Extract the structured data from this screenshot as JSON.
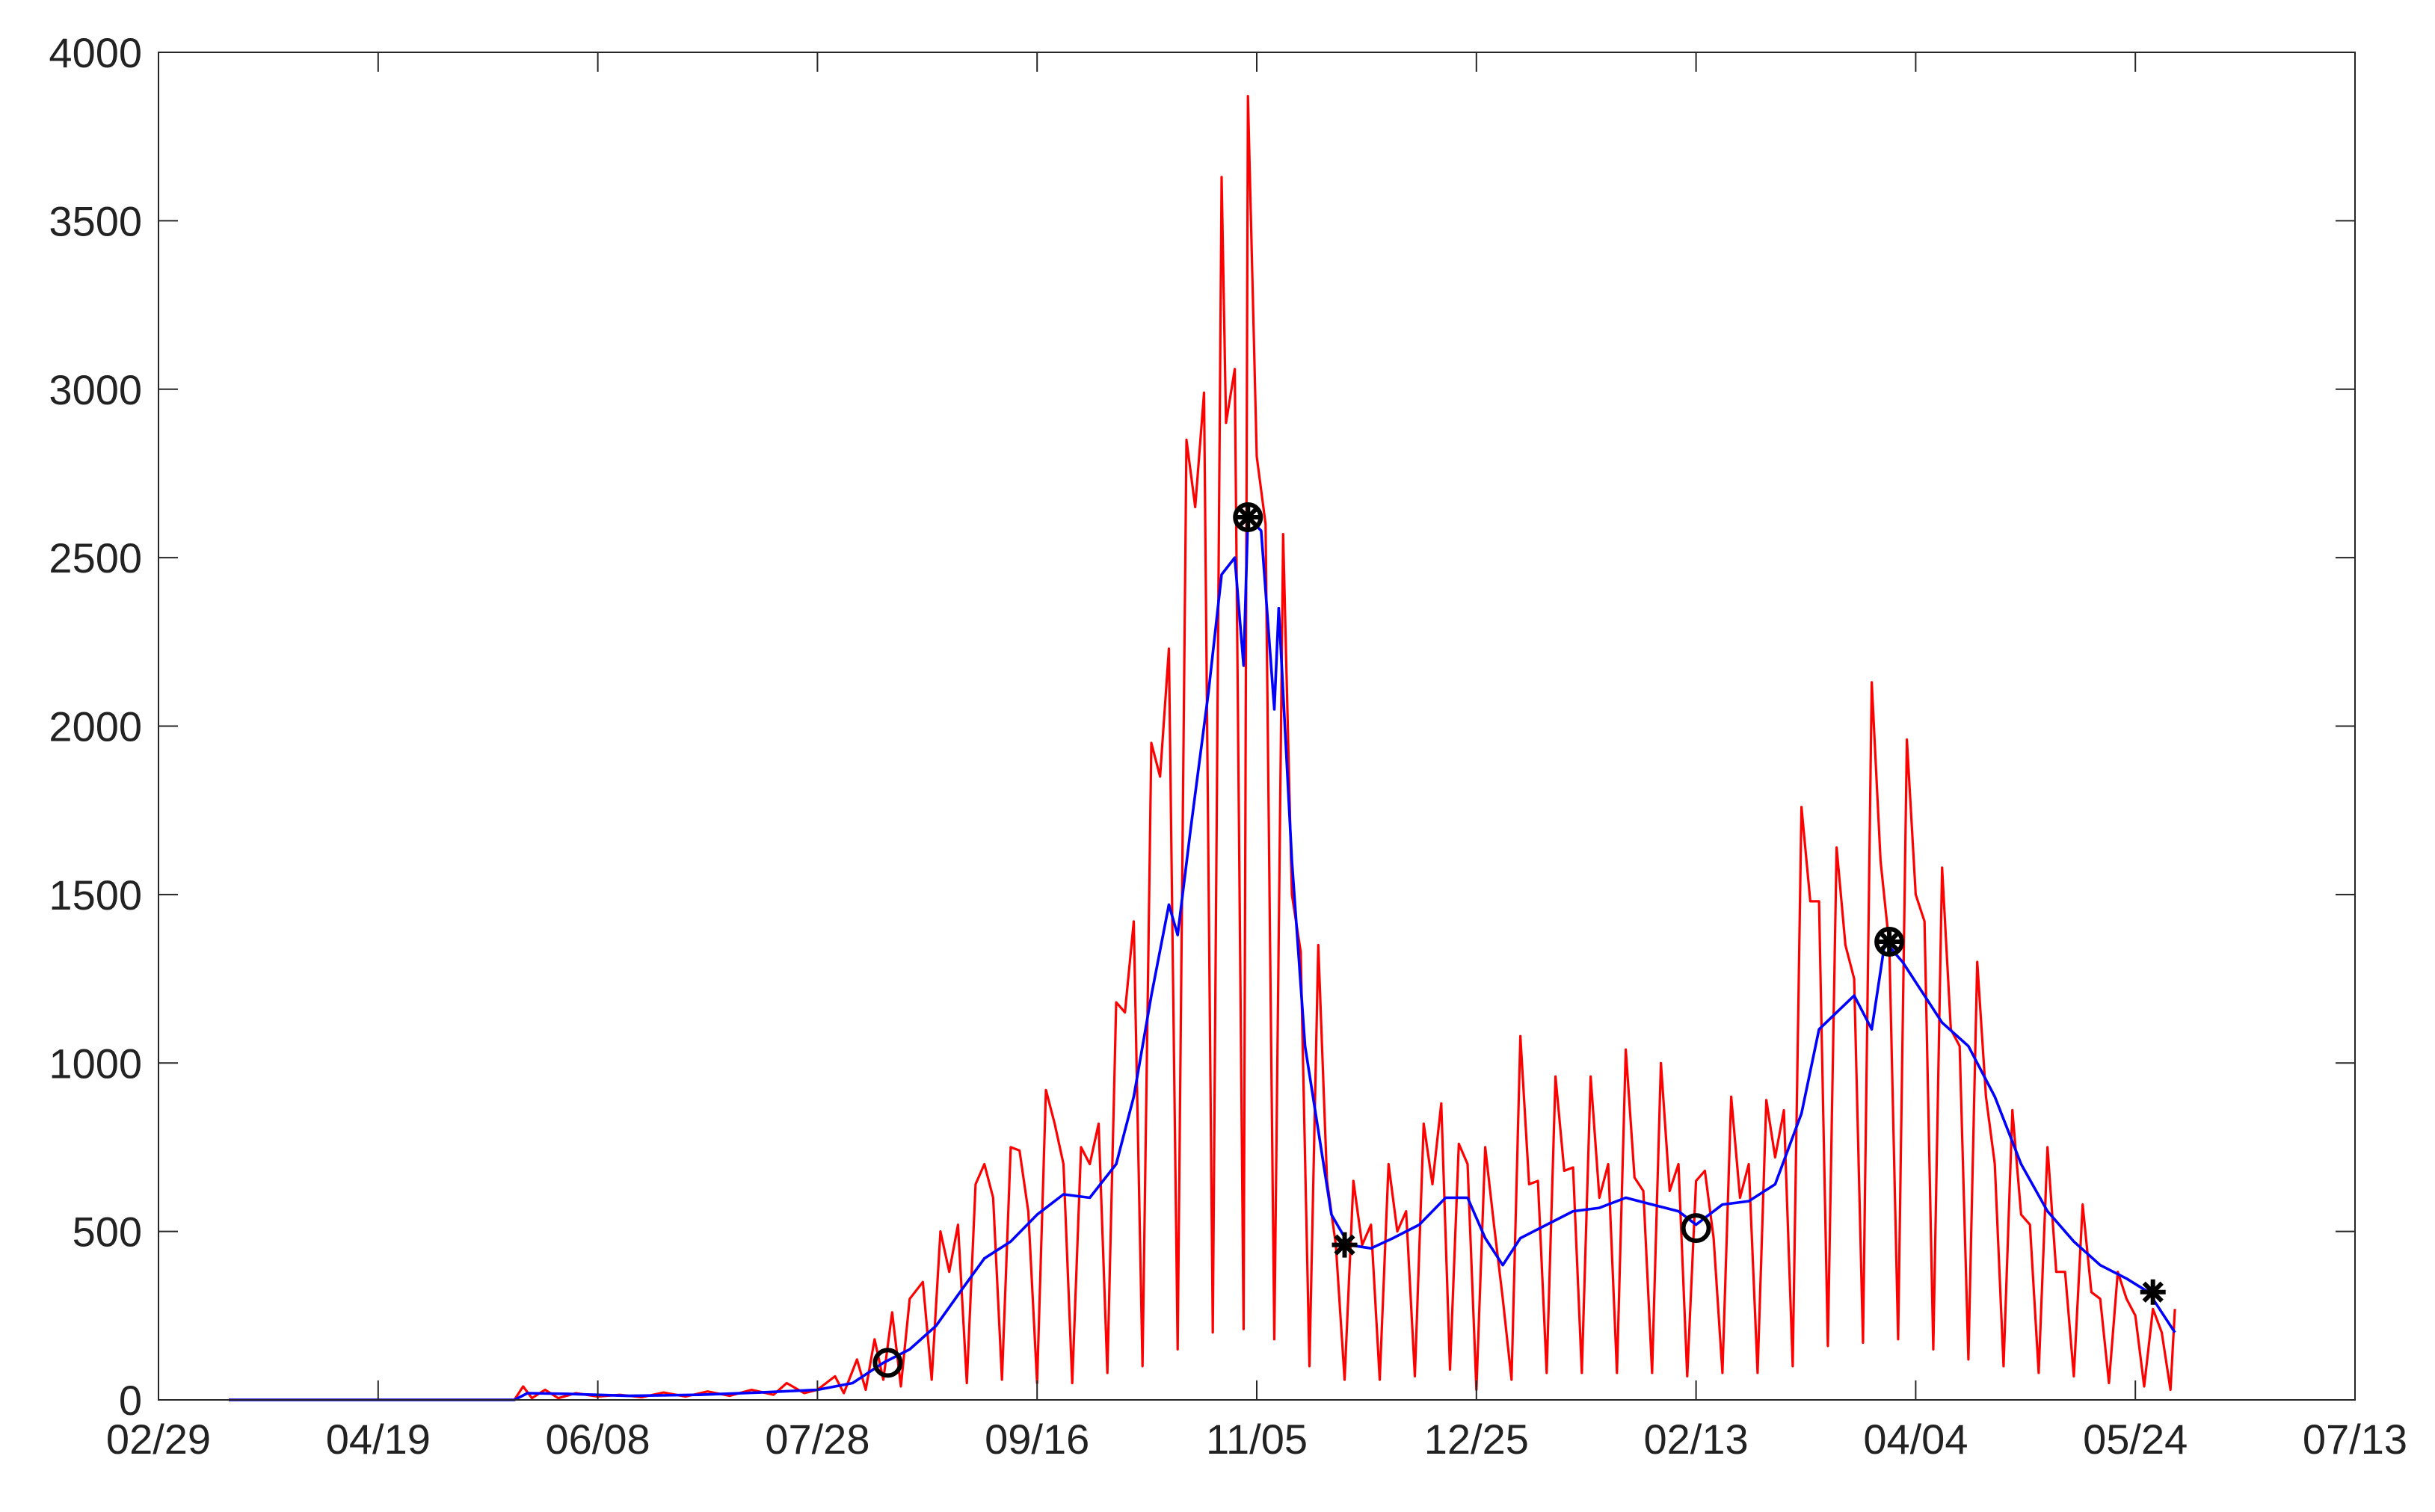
{
  "chart_data": {
    "type": "line",
    "title": "",
    "xlabel": "",
    "ylabel": "",
    "x_ticks": [
      "02/29",
      "04/19",
      "06/08",
      "07/28",
      "09/16",
      "11/05",
      "12/25",
      "02/13",
      "04/04",
      "05/24",
      "07/13"
    ],
    "x_tick_dates": [
      "2020-02-29",
      "2020-04-19",
      "2020-06-08",
      "2020-07-28",
      "2020-09-16",
      "2020-11-05",
      "2020-12-25",
      "2021-02-13",
      "2021-04-04",
      "2021-05-24",
      "2021-07-13"
    ],
    "y_ticks": [
      0,
      500,
      1000,
      1500,
      2000,
      2500,
      3000,
      3500,
      4000
    ],
    "xlim": [
      "2020-02-29",
      "2021-07-13"
    ],
    "ylim": [
      0,
      4000
    ],
    "grid": false,
    "series": [
      {
        "color": "#ff0000",
        "style": "daily",
        "points": [
          [
            "2020-03-16",
            0
          ],
          [
            "2020-04-19",
            0
          ],
          [
            "2020-05-20",
            0
          ],
          [
            "2020-05-22",
            40
          ],
          [
            "2020-05-24",
            5
          ],
          [
            "2020-05-27",
            30
          ],
          [
            "2020-05-30",
            5
          ],
          [
            "2020-06-03",
            20
          ],
          [
            "2020-06-08",
            10
          ],
          [
            "2020-06-13",
            15
          ],
          [
            "2020-06-18",
            8
          ],
          [
            "2020-06-23",
            22
          ],
          [
            "2020-06-28",
            10
          ],
          [
            "2020-07-03",
            25
          ],
          [
            "2020-07-08",
            12
          ],
          [
            "2020-07-13",
            30
          ],
          [
            "2020-07-18",
            15
          ],
          [
            "2020-07-21",
            50
          ],
          [
            "2020-07-25",
            20
          ],
          [
            "2020-07-28",
            30
          ],
          [
            "2020-08-01",
            70
          ],
          [
            "2020-08-03",
            20
          ],
          [
            "2020-08-06",
            120
          ],
          [
            "2020-08-08",
            30
          ],
          [
            "2020-08-10",
            180
          ],
          [
            "2020-08-12",
            60
          ],
          [
            "2020-08-14",
            260
          ],
          [
            "2020-08-16",
            40
          ],
          [
            "2020-08-18",
            300
          ],
          [
            "2020-08-21",
            350
          ],
          [
            "2020-08-23",
            60
          ],
          [
            "2020-08-25",
            500
          ],
          [
            "2020-08-27",
            380
          ],
          [
            "2020-08-29",
            520
          ],
          [
            "2020-08-31",
            50
          ],
          [
            "2020-09-02",
            640
          ],
          [
            "2020-09-04",
            700
          ],
          [
            "2020-09-06",
            600
          ],
          [
            "2020-09-08",
            60
          ],
          [
            "2020-09-10",
            750
          ],
          [
            "2020-09-12",
            740
          ],
          [
            "2020-09-14",
            560
          ],
          [
            "2020-09-16",
            50
          ],
          [
            "2020-09-18",
            920
          ],
          [
            "2020-09-20",
            820
          ],
          [
            "2020-09-22",
            700
          ],
          [
            "2020-09-24",
            50
          ],
          [
            "2020-09-26",
            750
          ],
          [
            "2020-09-28",
            700
          ],
          [
            "2020-09-30",
            820
          ],
          [
            "2020-10-02",
            80
          ],
          [
            "2020-10-04",
            1180
          ],
          [
            "2020-10-06",
            1150
          ],
          [
            "2020-10-08",
            1420
          ],
          [
            "2020-10-10",
            100
          ],
          [
            "2020-10-12",
            1950
          ],
          [
            "2020-10-14",
            1850
          ],
          [
            "2020-10-16",
            2230
          ],
          [
            "2020-10-18",
            150
          ],
          [
            "2020-10-20",
            2850
          ],
          [
            "2020-10-22",
            2650
          ],
          [
            "2020-10-24",
            2990
          ],
          [
            "2020-10-26",
            200
          ],
          [
            "2020-10-28",
            3630
          ],
          [
            "2020-10-29",
            2900
          ],
          [
            "2020-10-31",
            3060
          ],
          [
            "2020-11-02",
            210
          ],
          [
            "2020-11-03",
            3870
          ],
          [
            "2020-11-05",
            2800
          ],
          [
            "2020-11-07",
            2600
          ],
          [
            "2020-11-09",
            180
          ],
          [
            "2020-11-11",
            2570
          ],
          [
            "2020-11-13",
            1500
          ],
          [
            "2020-11-15",
            1330
          ],
          [
            "2020-11-17",
            100
          ],
          [
            "2020-11-19",
            1350
          ],
          [
            "2020-11-21",
            650
          ],
          [
            "2020-11-23",
            460
          ],
          [
            "2020-11-25",
            60
          ],
          [
            "2020-11-27",
            650
          ],
          [
            "2020-11-29",
            460
          ],
          [
            "2020-12-01",
            520
          ],
          [
            "2020-12-03",
            60
          ],
          [
            "2020-12-05",
            700
          ],
          [
            "2020-12-07",
            500
          ],
          [
            "2020-12-09",
            560
          ],
          [
            "2020-12-11",
            70
          ],
          [
            "2020-12-13",
            820
          ],
          [
            "2020-12-15",
            640
          ],
          [
            "2020-12-17",
            880
          ],
          [
            "2020-12-19",
            90
          ],
          [
            "2020-12-21",
            760
          ],
          [
            "2020-12-23",
            700
          ],
          [
            "2020-12-25",
            30
          ],
          [
            "2020-12-27",
            750
          ],
          [
            "2020-12-29",
            520
          ],
          [
            "2020-12-31",
            300
          ],
          [
            "2021-01-02",
            60
          ],
          [
            "2021-01-04",
            1080
          ],
          [
            "2021-01-06",
            640
          ],
          [
            "2021-01-08",
            650
          ],
          [
            "2021-01-10",
            80
          ],
          [
            "2021-01-12",
            960
          ],
          [
            "2021-01-14",
            680
          ],
          [
            "2021-01-16",
            690
          ],
          [
            "2021-01-18",
            80
          ],
          [
            "2021-01-20",
            960
          ],
          [
            "2021-01-22",
            600
          ],
          [
            "2021-01-24",
            700
          ],
          [
            "2021-01-26",
            80
          ],
          [
            "2021-01-28",
            1040
          ],
          [
            "2021-01-30",
            660
          ],
          [
            "2021-02-01",
            620
          ],
          [
            "2021-02-03",
            80
          ],
          [
            "2021-02-05",
            1000
          ],
          [
            "2021-02-07",
            620
          ],
          [
            "2021-02-09",
            700
          ],
          [
            "2021-02-11",
            70
          ],
          [
            "2021-02-13",
            650
          ],
          [
            "2021-02-15",
            680
          ],
          [
            "2021-02-17",
            480
          ],
          [
            "2021-02-19",
            80
          ],
          [
            "2021-02-21",
            900
          ],
          [
            "2021-02-23",
            600
          ],
          [
            "2021-02-25",
            700
          ],
          [
            "2021-02-27",
            80
          ],
          [
            "2021-03-01",
            890
          ],
          [
            "2021-03-03",
            720
          ],
          [
            "2021-03-05",
            860
          ],
          [
            "2021-03-07",
            100
          ],
          [
            "2021-03-09",
            1760
          ],
          [
            "2021-03-11",
            1480
          ],
          [
            "2021-03-13",
            1480
          ],
          [
            "2021-03-15",
            160
          ],
          [
            "2021-03-17",
            1640
          ],
          [
            "2021-03-19",
            1350
          ],
          [
            "2021-03-21",
            1250
          ],
          [
            "2021-03-23",
            170
          ],
          [
            "2021-03-25",
            2130
          ],
          [
            "2021-03-27",
            1600
          ],
          [
            "2021-03-29",
            1350
          ],
          [
            "2021-03-31",
            180
          ],
          [
            "2021-04-02",
            1960
          ],
          [
            "2021-04-04",
            1500
          ],
          [
            "2021-04-06",
            1420
          ],
          [
            "2021-04-08",
            150
          ],
          [
            "2021-04-10",
            1580
          ],
          [
            "2021-04-12",
            1100
          ],
          [
            "2021-04-14",
            1050
          ],
          [
            "2021-04-16",
            120
          ],
          [
            "2021-04-18",
            1300
          ],
          [
            "2021-04-20",
            900
          ],
          [
            "2021-04-22",
            700
          ],
          [
            "2021-04-24",
            100
          ],
          [
            "2021-04-26",
            860
          ],
          [
            "2021-04-28",
            550
          ],
          [
            "2021-04-30",
            520
          ],
          [
            "2021-05-02",
            80
          ],
          [
            "2021-05-04",
            750
          ],
          [
            "2021-05-06",
            380
          ],
          [
            "2021-05-08",
            380
          ],
          [
            "2021-05-10",
            70
          ],
          [
            "2021-05-12",
            580
          ],
          [
            "2021-05-14",
            320
          ],
          [
            "2021-05-16",
            300
          ],
          [
            "2021-05-18",
            50
          ],
          [
            "2021-05-20",
            380
          ],
          [
            "2021-05-22",
            300
          ],
          [
            "2021-05-24",
            250
          ],
          [
            "2021-05-26",
            40
          ],
          [
            "2021-05-28",
            270
          ],
          [
            "2021-05-30",
            200
          ],
          [
            "2021-06-01",
            30
          ],
          [
            "2021-06-02",
            270
          ]
        ]
      },
      {
        "color": "#0000ff",
        "style": "average",
        "points": [
          [
            "2020-03-16",
            0
          ],
          [
            "2020-04-19",
            0
          ],
          [
            "2020-05-20",
            0
          ],
          [
            "2020-05-23",
            20
          ],
          [
            "2020-06-01",
            18
          ],
          [
            "2020-06-15",
            12
          ],
          [
            "2020-07-01",
            15
          ],
          [
            "2020-07-15",
            22
          ],
          [
            "2020-07-28",
            30
          ],
          [
            "2020-08-05",
            50
          ],
          [
            "2020-08-12",
            110
          ],
          [
            "2020-08-18",
            150
          ],
          [
            "2020-08-24",
            220
          ],
          [
            "2020-08-30",
            330
          ],
          [
            "2020-09-04",
            420
          ],
          [
            "2020-09-10",
            470
          ],
          [
            "2020-09-16",
            550
          ],
          [
            "2020-09-22",
            610
          ],
          [
            "2020-09-28",
            600
          ],
          [
            "2020-10-04",
            700
          ],
          [
            "2020-10-08",
            900
          ],
          [
            "2020-10-12",
            1200
          ],
          [
            "2020-10-16",
            1470
          ],
          [
            "2020-10-18",
            1380
          ],
          [
            "2020-10-21",
            1700
          ],
          [
            "2020-10-25",
            2100
          ],
          [
            "2020-10-28",
            2450
          ],
          [
            "2020-10-31",
            2500
          ],
          [
            "2020-11-02",
            2180
          ],
          [
            "2020-11-03",
            2620
          ],
          [
            "2020-11-06",
            2580
          ],
          [
            "2020-11-09",
            2050
          ],
          [
            "2020-11-10",
            2350
          ],
          [
            "2020-11-13",
            1600
          ],
          [
            "2020-11-16",
            1050
          ],
          [
            "2020-11-19",
            800
          ],
          [
            "2020-11-22",
            550
          ],
          [
            "2020-11-26",
            460
          ],
          [
            "2020-12-01",
            450
          ],
          [
            "2020-12-06",
            480
          ],
          [
            "2020-12-12",
            520
          ],
          [
            "2020-12-18",
            600
          ],
          [
            "2020-12-23",
            600
          ],
          [
            "2020-12-27",
            480
          ],
          [
            "2020-12-31",
            400
          ],
          [
            "2021-01-04",
            480
          ],
          [
            "2021-01-10",
            520
          ],
          [
            "2021-01-16",
            560
          ],
          [
            "2021-01-22",
            570
          ],
          [
            "2021-01-28",
            600
          ],
          [
            "2021-02-03",
            580
          ],
          [
            "2021-02-09",
            560
          ],
          [
            "2021-02-13",
            520
          ],
          [
            "2021-02-19",
            580
          ],
          [
            "2021-02-25",
            590
          ],
          [
            "2021-03-03",
            640
          ],
          [
            "2021-03-09",
            850
          ],
          [
            "2021-03-13",
            1100
          ],
          [
            "2021-03-17",
            1150
          ],
          [
            "2021-03-21",
            1200
          ],
          [
            "2021-03-25",
            1100
          ],
          [
            "2021-03-28",
            1360
          ],
          [
            "2021-04-01",
            1300
          ],
          [
            "2021-04-06",
            1200
          ],
          [
            "2021-04-10",
            1120
          ],
          [
            "2021-04-16",
            1050
          ],
          [
            "2021-04-22",
            900
          ],
          [
            "2021-04-28",
            700
          ],
          [
            "2021-05-04",
            560
          ],
          [
            "2021-05-10",
            470
          ],
          [
            "2021-05-16",
            400
          ],
          [
            "2021-05-22",
            360
          ],
          [
            "2021-05-27",
            320
          ],
          [
            "2021-06-02",
            200
          ]
        ]
      }
    ],
    "annotations": [
      {
        "marker": "circle",
        "date": "2020-08-13",
        "value": 110
      },
      {
        "marker": "circle-star",
        "date": "2020-11-03",
        "value": 2620
      },
      {
        "marker": "star",
        "date": "2020-11-25",
        "value": 460
      },
      {
        "marker": "circle",
        "date": "2021-02-13",
        "value": 510
      },
      {
        "marker": "circle-star",
        "date": "2021-03-29",
        "value": 1360
      },
      {
        "marker": "star",
        "date": "2021-05-28",
        "value": 320
      }
    ]
  }
}
